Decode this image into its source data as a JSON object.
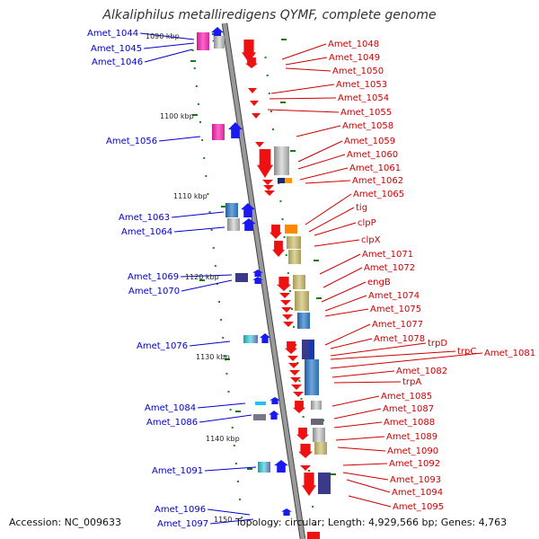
{
  "title": "Alkaliphilus metalliredigens QYMF, complete genome",
  "footer": {
    "accession": "Accession: NC_009633",
    "topology": "Topology: circular; Length: 4,929,566 bp; Genes: 4,763"
  },
  "colors": {
    "backbone": "#9a9a9a",
    "left_label": "#0000cc",
    "right_label": "#cc0000",
    "tick": "#1a7a1a"
  },
  "kbp_markers": [
    "1090 kbp",
    "1100 kbp",
    "1110 kbp",
    "1120 kbp",
    "1130 kbp",
    "1140 kbp",
    "1150"
  ],
  "left_genes": [
    "Amet_1044",
    "Amet_1045",
    "Amet_1046",
    "Amet_1056",
    "Amet_1063",
    "Amet_1064",
    "Amet_1069",
    "Amet_1070",
    "Amet_1076",
    "Amet_1084",
    "Amet_1086",
    "Amet_1091",
    "Amet_1096",
    "Amet_1097"
  ],
  "right_genes": [
    "Amet_1048",
    "Amet_1049",
    "Amet_1050",
    "Amet_1053",
    "Amet_1054",
    "Amet_1055",
    "Amet_1058",
    "Amet_1059",
    "Amet_1060",
    "Amet_1061",
    "Amet_1062",
    "Amet_1065",
    "tig",
    "clpP",
    "clpX",
    "Amet_1071",
    "Amet_1072",
    "engB",
    "Amet_1074",
    "Amet_1075",
    "Amet_1077",
    "Amet_1078",
    "trpD",
    "trpC",
    "Amet_1081",
    "Amet_1082",
    "trpA",
    "Amet_1085",
    "Amet_1087",
    "Amet_1088",
    "Amet_1089",
    "Amet_1090",
    "Amet_1092",
    "Amet_1093",
    "Amet_1094",
    "Amet_1095"
  ]
}
